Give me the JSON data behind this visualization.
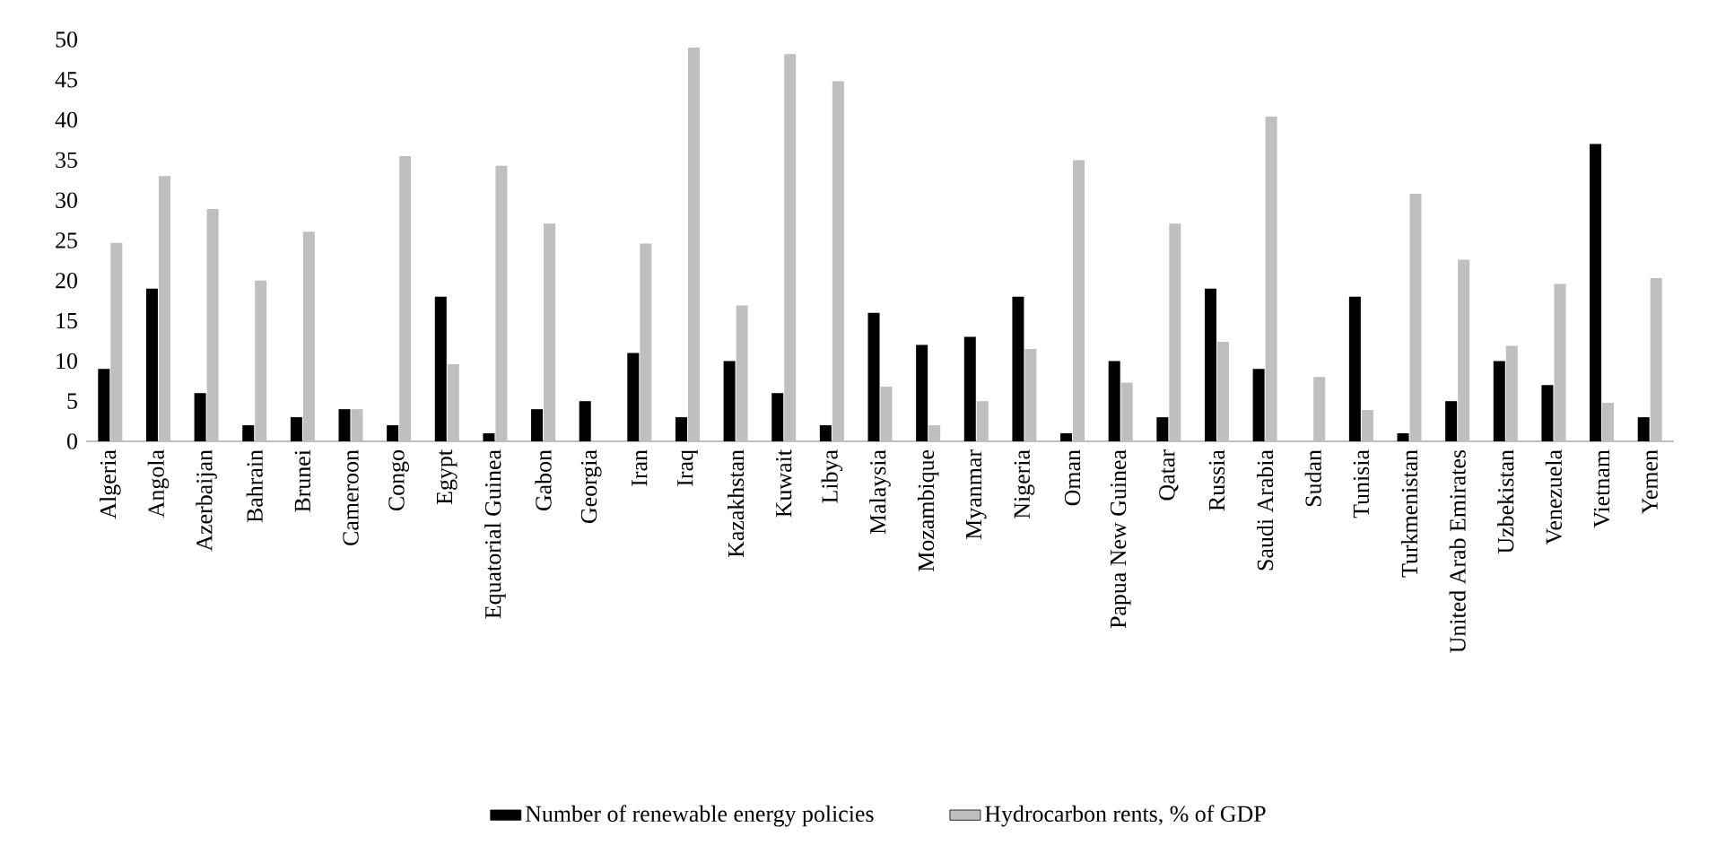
{
  "chart_data": {
    "type": "bar",
    "categories": [
      "Algeria",
      "Angola",
      "Azerbaijan",
      "Bahrain",
      "Brunei",
      "Cameroon",
      "Congo",
      "Egypt",
      "Equatorial Guinea",
      "Gabon",
      "Georgia",
      "Iran",
      "Iraq",
      "Kazakhstan",
      "Kuwait",
      "Libya",
      "Malaysia",
      "Mozambique",
      "Myanmar",
      "Nigeria",
      "Oman",
      "Papua New Guinea",
      "Qatar",
      "Russia",
      "Saudi Arabia",
      "Sudan",
      "Tunisia",
      "Turkmenistan",
      "United Arab Emirates",
      "Uzbekistan",
      "Venezuela",
      "Vietnam",
      "Yemen"
    ],
    "series": [
      {
        "name": "Number of renewable energy policies",
        "color": "#000000",
        "values": [
          9,
          19,
          6,
          2,
          3,
          4,
          2,
          18,
          1,
          4,
          5,
          11,
          3,
          10,
          6,
          2,
          16,
          12,
          13,
          18,
          1,
          10,
          3,
          19,
          9,
          0,
          18,
          1,
          5,
          10,
          7,
          37,
          3
        ]
      },
      {
        "name": "Hydrocarbon rents, % of GDP",
        "color": "#bfbfbf",
        "values": [
          24.7,
          33,
          28.9,
          20,
          26.1,
          4,
          35.5,
          9.6,
          34.3,
          27.1,
          null,
          24.6,
          49,
          16.9,
          48.2,
          44.8,
          6.8,
          2,
          5,
          11.5,
          35,
          7.3,
          27.1,
          12.4,
          40.4,
          8,
          3.9,
          30.8,
          22.6,
          11.9,
          19.6,
          4.8,
          20.3
        ]
      }
    ],
    "ylim": [
      0,
      50
    ],
    "yticks": [
      0,
      5,
      10,
      15,
      20,
      25,
      30,
      35,
      40,
      45,
      50
    ],
    "grid": false,
    "legend": "bottom"
  }
}
